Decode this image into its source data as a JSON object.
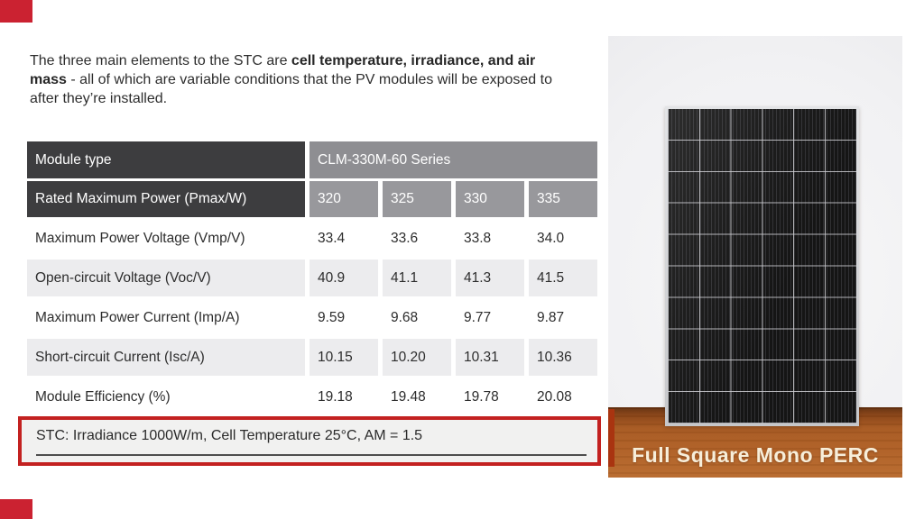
{
  "intro": {
    "part1": "The three main elements to the STC are ",
    "part2_bold": "cell temperature, irradiance, and air mass",
    "part3": " - all of which are variable conditions that the PV modules will be exposed to after they’re installed."
  },
  "table": {
    "header": {
      "module_type_label": "Module type",
      "series_label": "CLM-330M-60 Series",
      "power_label": "Rated Maximum Power (Pmax/W)",
      "power_values": [
        "320",
        "325",
        "330",
        "335"
      ]
    },
    "rows": [
      {
        "label": "Maximum Power Voltage (Vmp/V)",
        "values": [
          "33.4",
          "33.6",
          "33.8",
          "34.0"
        ]
      },
      {
        "label": "Open-circuit Voltage (Voc/V)",
        "values": [
          "40.9",
          "41.1",
          "41.3",
          "41.5"
        ]
      },
      {
        "label": "Maximum Power Current (Imp/A)",
        "values": [
          "9.59",
          "9.68",
          "9.77",
          "9.87"
        ]
      },
      {
        "label": "Short-circuit Current (Isc/A)",
        "values": [
          "10.15",
          "10.20",
          "10.31",
          "10.36"
        ]
      },
      {
        "label": "Module Efficiency (%)",
        "values": [
          "19.18",
          "19.48",
          "19.78",
          "20.08"
        ]
      }
    ]
  },
  "stc_note": {
    "text": "STC: Irradiance 1000W/m, Cell Temperature 25°C, AM = 1.5"
  },
  "photo": {
    "caption": "Full Square Mono PERC"
  },
  "colors": {
    "accent_red": "#c32120",
    "corner_red": "#cb2231",
    "header_dark": "#3d3d3f",
    "header_gray": "#98989c",
    "series_gray": "#8e8e92",
    "row_alt_gray": "#ececee",
    "wood_brown": "#a85a22",
    "caption_cream": "#f7eeda",
    "panel_black": "#151515"
  }
}
